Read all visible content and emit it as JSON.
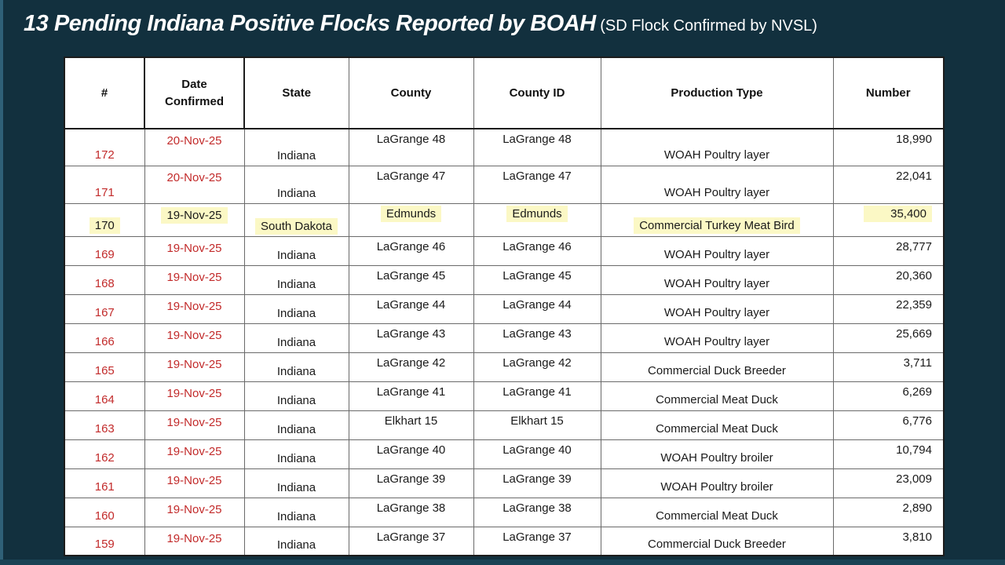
{
  "title": {
    "main": "13 Pending Indiana Positive Flocks Reported by BOAH",
    "suffix": " (SD Flock Confirmed by NVSL)"
  },
  "colors": {
    "slide_background": "#12303e",
    "left_edge_strip": "#2f6077",
    "bottom_edge_strip": "#1a4355",
    "pending_text_red": "#c22a2a",
    "confirmed_highlight_yellow": "#fbf8c5",
    "table_background": "#ffffff"
  },
  "table": {
    "columns": [
      "#",
      "Date Confirmed",
      "State",
      "County",
      "County ID",
      "Production Type",
      "Number"
    ],
    "column_keys": [
      "num",
      "date",
      "state",
      "county",
      "county_id",
      "production",
      "number"
    ],
    "rows": [
      {
        "num": "172",
        "date": "20-Nov-25",
        "state": "Indiana",
        "county": "LaGrange 48",
        "county_id": "LaGrange 48",
        "production": "WOAH Poultry layer",
        "number": "18,990",
        "highlight": false
      },
      {
        "num": "171",
        "date": "20-Nov-25",
        "state": "Indiana",
        "county": "LaGrange 47",
        "county_id": "LaGrange 47",
        "production": "WOAH Poultry layer",
        "number": "22,041",
        "highlight": false
      },
      {
        "num": "170",
        "date": "19-Nov-25",
        "state": "South Dakota",
        "county": "Edmunds",
        "county_id": "Edmunds",
        "production": "Commercial Turkey Meat Bird",
        "number": "35,400",
        "highlight": true
      },
      {
        "num": "169",
        "date": "19-Nov-25",
        "state": "Indiana",
        "county": "LaGrange 46",
        "county_id": "LaGrange 46",
        "production": "WOAH Poultry layer",
        "number": "28,777",
        "highlight": false
      },
      {
        "num": "168",
        "date": "19-Nov-25",
        "state": "Indiana",
        "county": "LaGrange 45",
        "county_id": "LaGrange 45",
        "production": "WOAH Poultry layer",
        "number": "20,360",
        "highlight": false
      },
      {
        "num": "167",
        "date": "19-Nov-25",
        "state": "Indiana",
        "county": "LaGrange 44",
        "county_id": "LaGrange 44",
        "production": "WOAH Poultry layer",
        "number": "22,359",
        "highlight": false
      },
      {
        "num": "166",
        "date": "19-Nov-25",
        "state": "Indiana",
        "county": "LaGrange 43",
        "county_id": "LaGrange 43",
        "production": "WOAH Poultry layer",
        "number": "25,669",
        "highlight": false
      },
      {
        "num": "165",
        "date": "19-Nov-25",
        "state": "Indiana",
        "county": "LaGrange 42",
        "county_id": "LaGrange 42",
        "production": "Commercial Duck Breeder",
        "number": "3,711",
        "highlight": false
      },
      {
        "num": "164",
        "date": "19-Nov-25",
        "state": "Indiana",
        "county": "LaGrange 41",
        "county_id": "LaGrange 41",
        "production": "Commercial Meat Duck",
        "number": "6,269",
        "highlight": false
      },
      {
        "num": "163",
        "date": "19-Nov-25",
        "state": "Indiana",
        "county": "Elkhart 15",
        "county_id": "Elkhart 15",
        "production": "Commercial Meat Duck",
        "number": "6,776",
        "highlight": false
      },
      {
        "num": "162",
        "date": "19-Nov-25",
        "state": "Indiana",
        "county": "LaGrange 40",
        "county_id": "LaGrange 40",
        "production": "WOAH Poultry broiler",
        "number": "10,794",
        "highlight": false
      },
      {
        "num": "161",
        "date": "19-Nov-25",
        "state": "Indiana",
        "county": "LaGrange 39",
        "county_id": "LaGrange 39",
        "production": "WOAH Poultry broiler",
        "number": "23,009",
        "highlight": false
      },
      {
        "num": "160",
        "date": "19-Nov-25",
        "state": "Indiana",
        "county": "LaGrange 38",
        "county_id": "LaGrange 38",
        "production": "Commercial Meat Duck",
        "number": "2,890",
        "highlight": false
      },
      {
        "num": "159",
        "date": "19-Nov-25",
        "state": "Indiana",
        "county": "LaGrange 37",
        "county_id": "LaGrange 37",
        "production": "Commercial Duck Breeder",
        "number": "3,810",
        "highlight": false
      }
    ]
  }
}
